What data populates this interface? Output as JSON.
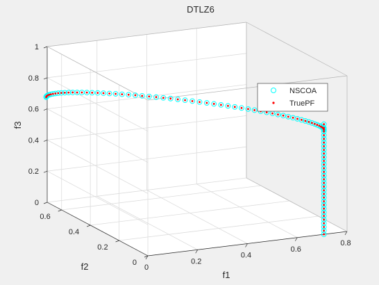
{
  "chart_data": {
    "type": "scatter3d",
    "title": "DTLZ6",
    "xlabel": "f1",
    "ylabel": "f2",
    "zlabel": "f3",
    "xlim": [
      0,
      0.8
    ],
    "ylim": [
      0,
      0.7
    ],
    "zlim": [
      0,
      1
    ],
    "xticks": [
      "0",
      "0.2",
      "0.4",
      "0.6",
      "0.8"
    ],
    "yticks": [
      "0",
      "0.2",
      "0.4",
      "0.6"
    ],
    "zticks": [
      "0",
      "0.2",
      "0.4",
      "0.6",
      "0.8",
      "1"
    ],
    "grid": true,
    "legend_position": "right",
    "series": [
      {
        "name": "NSCOA",
        "marker": "circle",
        "color": "#00ffff",
        "curve": {
          "start": [
            0,
            0.707,
            0.707
          ],
          "end": [
            0.707,
            0,
            0.707
          ],
          "apex_theta_deg": 90
        },
        "note_vertical": [
          0.707,
          0,
          0.707
        ]
      },
      {
        "name": "TruePF",
        "marker": "dot",
        "color": "#ff0000"
      }
    ]
  },
  "colors": {
    "background": "#f0f0f0",
    "axes": "#ffffff",
    "grid": "#dcdcdc",
    "axis_line": "#262626",
    "nscoa": "#00ffff",
    "truepf": "#ff0000"
  }
}
